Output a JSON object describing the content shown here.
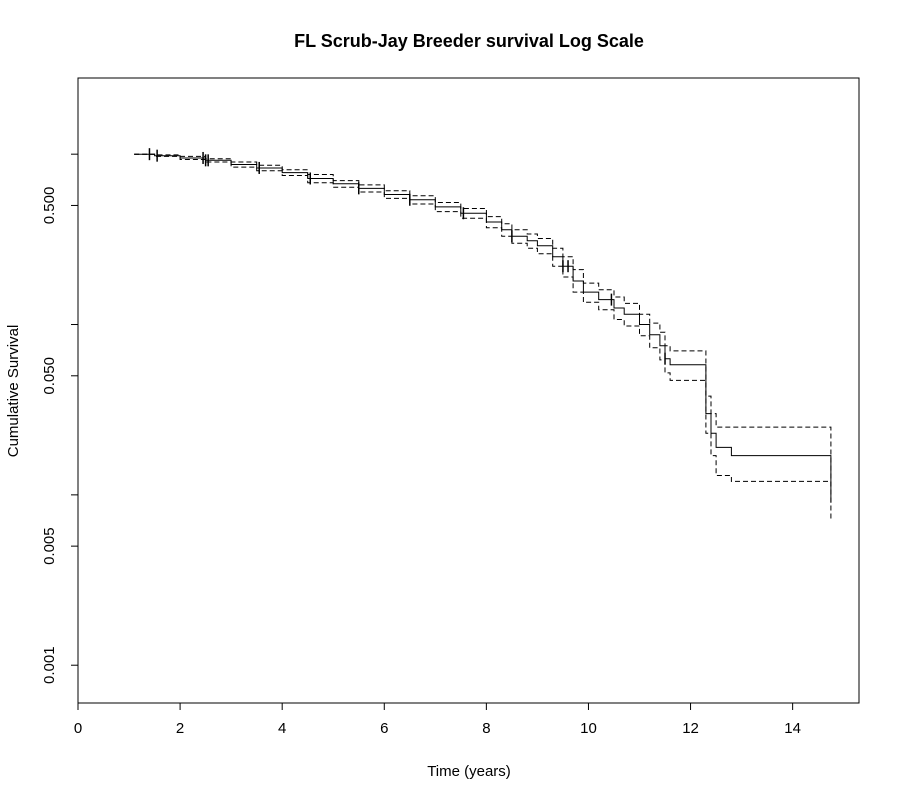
{
  "chart_data": {
    "type": "line",
    "title": "FL Scrub-Jay Breeder survival Log Scale",
    "xlabel": "Time (years)",
    "ylabel": "Cumulative Survival",
    "xlim": [
      0,
      15.3
    ],
    "ylim": [
      0.0006,
      2.8
    ],
    "y_scale": "log",
    "x_ticks": [
      0,
      2,
      4,
      6,
      8,
      10,
      12,
      14
    ],
    "x_tick_labels": [
      "0",
      "2",
      "4",
      "6",
      "8",
      "10",
      "12",
      "14"
    ],
    "y_ticks": [
      0.001,
      0.005,
      0.05,
      0.5
    ],
    "y_tick_labels": [
      "0.001",
      "0.005",
      "0.050",
      "0.500"
    ],
    "y_minor_ticks": [
      0.01,
      0.1,
      1.0
    ],
    "grid": false,
    "legend": "none",
    "series": [
      {
        "role": "estimate",
        "line_style": "solid",
        "x": [
          1.1,
          1.5,
          2.0,
          2.5,
          3.0,
          3.5,
          4.0,
          4.5,
          5.0,
          5.5,
          6.0,
          6.5,
          7.0,
          7.5,
          8.0,
          8.3,
          8.5,
          8.8,
          9.0,
          9.3,
          9.5,
          9.7,
          9.9,
          10.2,
          10.5,
          10.7,
          11.0,
          11.2,
          11.4,
          11.5,
          11.6,
          11.9,
          12.3,
          12.4,
          12.5,
          12.8,
          14.7,
          14.75
        ],
        "y": [
          1.0,
          0.98,
          0.95,
          0.92,
          0.87,
          0.83,
          0.78,
          0.72,
          0.67,
          0.63,
          0.58,
          0.54,
          0.49,
          0.45,
          0.4,
          0.36,
          0.33,
          0.31,
          0.29,
          0.25,
          0.22,
          0.18,
          0.155,
          0.14,
          0.125,
          0.115,
          0.1,
          0.087,
          0.075,
          0.063,
          0.058,
          0.058,
          0.03,
          0.023,
          0.019,
          0.017,
          0.017,
          0.009
        ]
      },
      {
        "role": "upper-ci",
        "line_style": "dashed",
        "x": [
          1.1,
          1.5,
          2.0,
          2.5,
          3.0,
          3.5,
          4.0,
          4.5,
          5.0,
          5.5,
          6.0,
          6.5,
          7.0,
          7.5,
          8.0,
          8.3,
          8.5,
          8.8,
          9.0,
          9.3,
          9.5,
          9.7,
          9.9,
          10.2,
          10.5,
          10.7,
          11.0,
          11.2,
          11.4,
          11.5,
          11.6,
          11.9,
          12.3,
          12.4,
          12.5,
          12.8,
          14.7,
          14.75
        ],
        "y": [
          1.0,
          0.99,
          0.97,
          0.94,
          0.9,
          0.86,
          0.81,
          0.76,
          0.7,
          0.66,
          0.61,
          0.57,
          0.52,
          0.48,
          0.43,
          0.39,
          0.36,
          0.34,
          0.32,
          0.28,
          0.25,
          0.21,
          0.175,
          0.16,
          0.145,
          0.133,
          0.115,
          0.102,
          0.09,
          0.075,
          0.07,
          0.07,
          0.038,
          0.03,
          0.025,
          0.025,
          0.025,
          0.011
        ]
      },
      {
        "role": "lower-ci",
        "line_style": "dashed",
        "x": [
          1.1,
          1.5,
          2.0,
          2.5,
          3.0,
          3.5,
          4.0,
          4.5,
          5.0,
          5.5,
          6.0,
          6.5,
          7.0,
          7.5,
          8.0,
          8.3,
          8.5,
          8.8,
          9.0,
          9.3,
          9.5,
          9.7,
          9.9,
          10.2,
          10.5,
          10.7,
          11.0,
          11.2,
          11.4,
          11.5,
          11.6,
          11.9,
          12.3,
          12.4,
          12.5,
          12.8,
          14.7,
          14.75
        ],
        "y": [
          1.0,
          0.97,
          0.93,
          0.9,
          0.84,
          0.8,
          0.75,
          0.68,
          0.64,
          0.6,
          0.55,
          0.51,
          0.46,
          0.42,
          0.37,
          0.33,
          0.3,
          0.28,
          0.26,
          0.22,
          0.19,
          0.155,
          0.135,
          0.122,
          0.107,
          0.098,
          0.086,
          0.073,
          0.062,
          0.052,
          0.047,
          0.047,
          0.023,
          0.017,
          0.013,
          0.012,
          0.012,
          0.007
        ]
      }
    ],
    "censor_marks": [
      1.4,
      1.55,
      2.45,
      2.5,
      2.55,
      3.55,
      4.55,
      5.5,
      6.5,
      7.55,
      8.5,
      9.5,
      9.6,
      10.45,
      11.5
    ]
  }
}
